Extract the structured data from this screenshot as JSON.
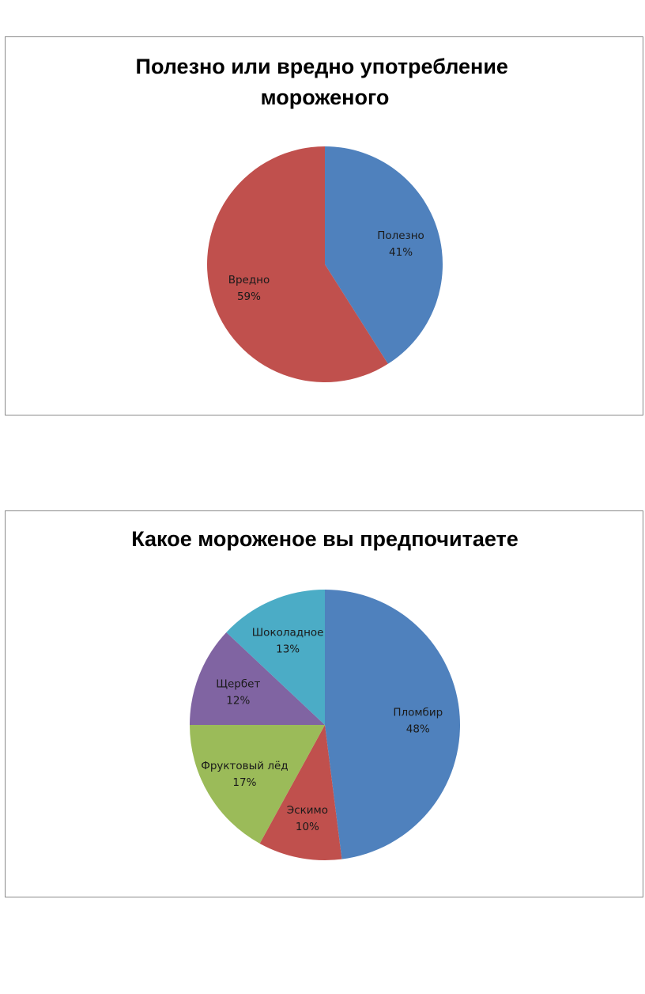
{
  "chart_data": [
    {
      "type": "pie",
      "title": "Полезно или вредно употребление мороженого",
      "title_lines": [
        "Полезно или вредно употребление",
        "мороженого"
      ],
      "legend": "none",
      "data_labels": "category and percentage, inside slices",
      "slices": [
        {
          "name": "Полезно",
          "value": 41,
          "label": "41%",
          "color": "#4F81BD"
        },
        {
          "name": "Вредно",
          "value": 59,
          "label": "59%",
          "color": "#C0504D"
        }
      ]
    },
    {
      "type": "pie",
      "title": "Какое мороженое вы предпочитаете",
      "title_lines": [
        "Какое мороженое вы предпочитаете"
      ],
      "legend": "none",
      "data_labels": "category and percentage, inside slices",
      "slices": [
        {
          "name": "Пломбир",
          "value": 48,
          "label": "48%",
          "color": "#4F81BD"
        },
        {
          "name": "Эскимо",
          "value": 10,
          "label": "10%",
          "color": "#C0504D"
        },
        {
          "name": "Фруктовый лёд",
          "value": 17,
          "label": "17%",
          "color": "#9BBB59"
        },
        {
          "name": "Щербет",
          "value": 12,
          "label": "12%",
          "color": "#8064A2"
        },
        {
          "name": "Шоколадное",
          "value": 13,
          "label": "13%",
          "color": "#4BACC6"
        }
      ]
    }
  ]
}
